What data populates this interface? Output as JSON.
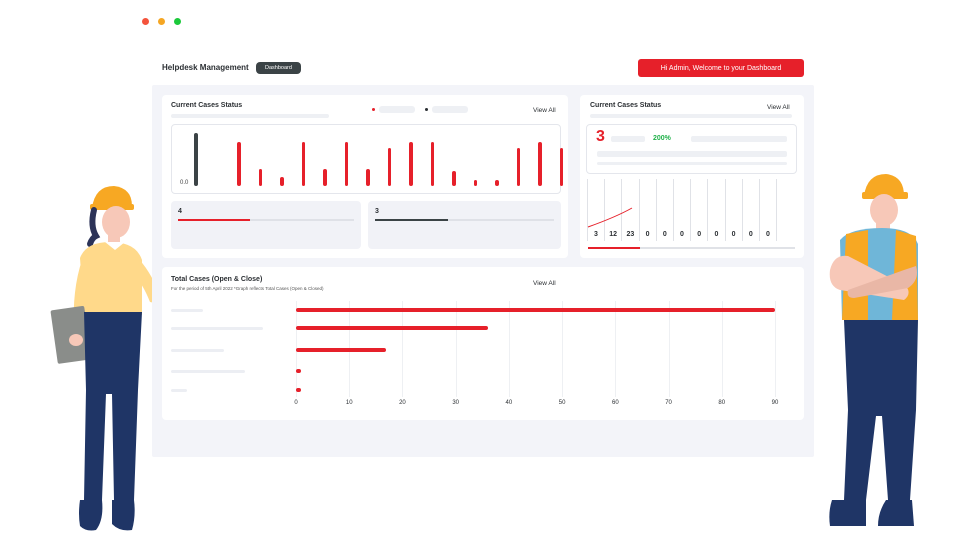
{
  "window": {
    "dots": [
      "#f4533c",
      "#f5a623",
      "#1cc93b"
    ]
  },
  "header": {
    "app_title": "Helpdesk Management",
    "tab_label": "Dashboard",
    "welcome": "Hi Admin, Welcome to your Dashboard"
  },
  "colors": {
    "accent": "#e6202a",
    "dark": "#3b4346",
    "success": "#20b14a"
  },
  "card1": {
    "title": "Current Cases Status",
    "view_all": "View All",
    "legend": [
      {
        "color": "#e6202a"
      },
      {
        "color": "#2b2f33"
      }
    ],
    "axis_label": "0.0",
    "stats": [
      {
        "value": "4",
        "progress": 0.41,
        "color": "#e6202a"
      },
      {
        "value": "3",
        "progress": 0.41,
        "color": "#3b4346"
      }
    ]
  },
  "card2": {
    "title": "Current Cases Status",
    "view_all": "View All",
    "big_value": "3",
    "percent": "200%",
    "columns": [
      "3",
      "12",
      "23",
      "0",
      "0",
      "0",
      "0",
      "0",
      "0",
      "0",
      "0"
    ],
    "progress": 0.25
  },
  "card3": {
    "title": "Total Cases (Open & Close)",
    "subtitle": "For the period of 5th April 2022 *Graph reflects Total Cases (Open & Closed)",
    "view_all": "View All"
  },
  "chart_data": [
    {
      "type": "bar",
      "title": "Current Cases Status",
      "ylabel": "",
      "series": [
        {
          "values": [
            1.0,
            0.0,
            0.83,
            0.33,
            0.17,
            0.83,
            0.33,
            0.83,
            0.33,
            0.72,
            0.83,
            0.83,
            0.28,
            0.11,
            0.11,
            0.72,
            0.83,
            0.72
          ]
        }
      ],
      "series_colors": [
        "#3b4346",
        "#e6202a"
      ],
      "first_bar_dark": true,
      "y_min_label": "0.0"
    },
    {
      "type": "bar",
      "orientation": "horizontal",
      "title": "Total Cases (Open & Close)",
      "categories": [
        "",
        "",
        "",
        "",
        ""
      ],
      "values": [
        90,
        36,
        17,
        0.5,
        0.5
      ],
      "xticks": [
        0,
        10,
        20,
        30,
        40,
        50,
        60,
        70,
        80,
        90
      ],
      "xlim": [
        0,
        90
      ],
      "color": "#e6202a"
    }
  ]
}
